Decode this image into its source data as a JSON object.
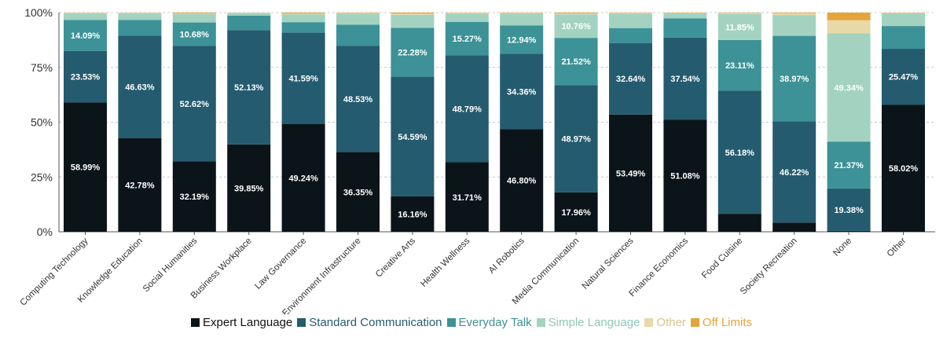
{
  "chart_data": {
    "type": "bar",
    "stacked": true,
    "ylim": [
      0,
      100
    ],
    "yticks": [
      "0%",
      "25%",
      "50%",
      "75%",
      "100%"
    ],
    "grid": "horizontal dashed",
    "legend_position": "bottom-center",
    "categories": [
      "Computing Technology",
      "Knowledge Education",
      "Social Humanities",
      "Business Workplace",
      "Law Governance",
      "Environment Infrastructure",
      "Creative Arts",
      "Health Wellness",
      "AI Robotics",
      "Media Communication",
      "Natural Sciences",
      "Finance Economics",
      "Food Cuisine",
      "Society Recreation",
      "None",
      "Other"
    ],
    "series": [
      {
        "name": "Expert Language",
        "color": "#0b1418",
        "label_color": "#ffffff",
        "values": [
          58.99,
          42.78,
          32.19,
          39.85,
          49.24,
          36.35,
          16.16,
          31.71,
          46.8,
          17.96,
          53.49,
          51.08,
          8.2,
          4.2,
          0.4,
          58.02
        ],
        "labels": [
          "58.99%",
          "42.78%",
          "32.19%",
          "39.85%",
          "49.24%",
          "36.35%",
          "16.16%",
          "31.71%",
          "46.80%",
          "17.96%",
          "53.49%",
          "51.08%",
          "",
          "",
          "",
          "58.02%"
        ]
      },
      {
        "name": "Standard Communication",
        "color": "#245b6f",
        "label_color": "#ffffff",
        "values": [
          23.53,
          46.63,
          52.62,
          52.13,
          41.59,
          48.53,
          54.59,
          48.79,
          34.36,
          48.97,
          32.64,
          37.54,
          56.18,
          46.22,
          19.38,
          25.47
        ],
        "labels": [
          "23.53%",
          "46.63%",
          "52.62%",
          "52.13%",
          "41.59%",
          "48.53%",
          "54.59%",
          "48.79%",
          "34.36%",
          "48.97%",
          "32.64%",
          "37.54%",
          "56.18%",
          "46.22%",
          "19.38%",
          "25.47%"
        ]
      },
      {
        "name": "Everyday Talk",
        "color": "#3c9296",
        "label_color": "#ffffff",
        "values": [
          14.09,
          7.2,
          10.68,
          6.6,
          4.8,
          9.6,
          22.28,
          15.27,
          12.94,
          21.52,
          6.8,
          8.7,
          23.11,
          38.97,
          21.37,
          10.38
        ],
        "labels": [
          "14.09%",
          "",
          "10.68%",
          "",
          "",
          "",
          "22.28%",
          "15.27%",
          "12.94%",
          "21.52%",
          "",
          "",
          "23.11%",
          "38.97%",
          "21.37%",
          ""
        ]
      },
      {
        "name": "Simple Language",
        "color": "#a3d3c0",
        "label_color": "#ffffff",
        "values": [
          3.0,
          3.0,
          3.8,
          1.2,
          3.6,
          5.0,
          6.0,
          3.8,
          5.4,
          10.76,
          6.5,
          2.3,
          11.85,
          9.5,
          49.34,
          5.8
        ],
        "labels": [
          "",
          "",
          "",
          "",
          "",
          "",
          "",
          "",
          "",
          "10.76%",
          "",
          "",
          "11.85%",
          "",
          "49.34%",
          ""
        ]
      },
      {
        "name": "Other",
        "color": "#e9d8a8",
        "label_color": "#ffffff",
        "values": [
          0.3,
          0.3,
          0.3,
          0.2,
          0.3,
          0.3,
          0.5,
          0.3,
          0.3,
          0.4,
          0.4,
          0.2,
          0.5,
          0.8,
          6.0,
          0.2
        ],
        "labels": [
          "",
          "",
          "",
          "",
          "",
          "",
          "",
          "",
          "",
          "",
          "",
          "",
          "",
          "",
          "",
          ""
        ]
      },
      {
        "name": "Off Limits",
        "color": "#e3a53b",
        "label_color": "#ffffff",
        "values": [
          0.09,
          0.09,
          0.41,
          0.02,
          0.47,
          0.22,
          0.47,
          0.13,
          0.2,
          0.39,
          0.17,
          0.18,
          0.16,
          0.31,
          3.51,
          0.13
        ],
        "labels": [
          "",
          "",
          "",
          "",
          "",
          "",
          "",
          "",
          "",
          "",
          "",
          "",
          "",
          "",
          "",
          ""
        ]
      }
    ]
  }
}
